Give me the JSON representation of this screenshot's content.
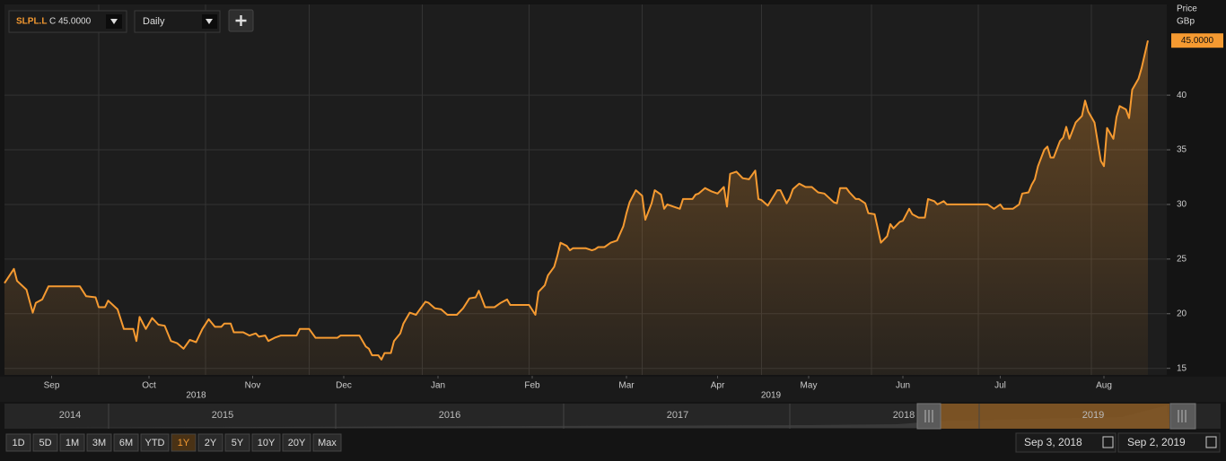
{
  "toolbar": {
    "symbol": "SLPL.L",
    "close_label": "C 45.0000",
    "interval": "Daily"
  },
  "chart_data": {
    "type": "line",
    "y_label": "Price",
    "y_unit": "GBp",
    "price_tag": "45.0000",
    "color": "#f59a31",
    "x": [
      0,
      3,
      4,
      7,
      9,
      10,
      12,
      14,
      24,
      26,
      29,
      30,
      32,
      33,
      36,
      38,
      41,
      42,
      43,
      45,
      47,
      49,
      51,
      53,
      55,
      57,
      59,
      61,
      63,
      65,
      67,
      69,
      70,
      72,
      73,
      76,
      78,
      80,
      81,
      83,
      84,
      86,
      88,
      93,
      94,
      97,
      99,
      106,
      107,
      113,
      115,
      116,
      117,
      119,
      120,
      121,
      123,
      124,
      126,
      127,
      129,
      131,
      132,
      134,
      135,
      137,
      139,
      141,
      144,
      146,
      148,
      150,
      151,
      153,
      156,
      158,
      160,
      161,
      167,
      169,
      170,
      172,
      173,
      175,
      176,
      177,
      179,
      180,
      181,
      185,
      187,
      188,
      189,
      191,
      193,
      195,
      197,
      198,
      199,
      201,
      203,
      204,
      206,
      207,
      209,
      210,
      211,
      213,
      215,
      216,
      219,
      220,
      221,
      223,
      225,
      227,
      229,
      230,
      231,
      233,
      235,
      237,
      239,
      240,
      241,
      243,
      246,
      247,
      249,
      250,
      251,
      253,
      255,
      257,
      259,
      261,
      264,
      265,
      266,
      268,
      269,
      271,
      272,
      274,
      275,
      277,
      278,
      279,
      281,
      282,
      283,
      285,
      286,
      288,
      289,
      291,
      293,
      294,
      296,
      297,
      299,
      300,
      313,
      315,
      317,
      318,
      321,
      323,
      324,
      326,
      327,
      328,
      329,
      331,
      332,
      333,
      334,
      336,
      337,
      338,
      339,
      341,
      343,
      344,
      345,
      347,
      349,
      350,
      351,
      353,
      354,
      355,
      357,
      358,
      359,
      361,
      362,
      364
    ],
    "values": [
      22.8,
      24.1,
      23,
      22.2,
      20.1,
      21,
      21.3,
      22.5,
      22.5,
      21.6,
      21.5,
      20.6,
      20.6,
      21.2,
      20.4,
      18.6,
      18.6,
      17.5,
      19.7,
      18.6,
      19.6,
      19.0,
      18.9,
      17.5,
      17.3,
      16.8,
      17.6,
      17.4,
      18.6,
      19.5,
      18.8,
      18.8,
      19.1,
      19.1,
      18.3,
      18.3,
      18.0,
      18.2,
      17.9,
      18.0,
      17.5,
      17.8,
      18.0,
      18.0,
      18.6,
      18.6,
      17.8,
      17.8,
      18.0,
      18.0,
      17.0,
      16.8,
      16.2,
      16.2,
      15.8,
      16.4,
      16.4,
      17.5,
      18.2,
      19.1,
      20.1,
      19.9,
      20.3,
      21.1,
      21.0,
      20.5,
      20.4,
      19.9,
      19.9,
      20.5,
      21.4,
      21.5,
      22.1,
      20.6,
      20.6,
      21.0,
      21.3,
      20.8,
      20.8,
      19.9,
      22.0,
      22.6,
      23.5,
      24.3,
      25.3,
      26.5,
      26.2,
      25.8,
      26.0,
      26.0,
      25.8,
      25.9,
      26.1,
      26.1,
      26.5,
      26.7,
      28.0,
      29.2,
      30.2,
      31.3,
      30.8,
      28.6,
      30.1,
      31.3,
      30.9,
      29.6,
      30.0,
      29.8,
      29.6,
      30.5,
      30.5,
      30.9,
      31.0,
      31.5,
      31.2,
      31.0,
      31.6,
      29.8,
      32.8,
      33.0,
      32.4,
      32.3,
      33.1,
      30.5,
      30.4,
      29.9,
      31.3,
      31.3,
      30.1,
      30.6,
      31.4,
      31.9,
      31.6,
      31.6,
      31.1,
      31.0,
      30.2,
      30.1,
      31.5,
      31.5,
      31.1,
      30.5,
      30.5,
      30.1,
      29.2,
      29.1,
      27.8,
      26.5,
      27.1,
      28.2,
      27.8,
      28.4,
      28.5,
      29.6,
      29.1,
      28.8,
      28.8,
      30.5,
      30.3,
      30.0,
      30.3,
      30.0,
      30.0,
      29.6,
      30.0,
      29.6,
      29.6,
      30.0,
      31.0,
      31.1,
      31.8,
      32.3,
      33.5,
      35.0,
      35.3,
      34.3,
      34.3,
      35.8,
      36.1,
      37.1,
      36.0,
      37.5,
      38.1,
      39.5,
      38.5,
      37.5,
      34.0,
      33.5,
      37.0,
      36.0,
      38.0,
      39.0,
      38.7,
      37.9,
      40.5,
      41.5,
      42.5,
      45.0
    ],
    "xlim": [
      0,
      370
    ],
    "ylim": [
      14.4,
      48.3
    ],
    "yticks": [
      15,
      20,
      25,
      30,
      35,
      40
    ],
    "xticks": [
      {
        "value": 15,
        "label": "Sep"
      },
      {
        "value": 46,
        "label": "Oct"
      },
      {
        "value": 79,
        "label": "Nov"
      },
      {
        "value": 108,
        "label": "Dec"
      },
      {
        "value": 138,
        "label": "Jan"
      },
      {
        "value": 168,
        "label": "Feb"
      },
      {
        "value": 198,
        "label": "Mar"
      },
      {
        "value": 227,
        "label": "Apr"
      },
      {
        "value": 256,
        "label": "May"
      },
      {
        "value": 286,
        "label": "Jun"
      },
      {
        "value": 317,
        "label": "Jul"
      },
      {
        "value": 350,
        "label": "Aug"
      }
    ],
    "xgrid": [
      30,
      64,
      97,
      133,
      167,
      203,
      241,
      276,
      310,
      346
    ],
    "year_labels": [
      {
        "x": 61,
        "label": "2018"
      },
      {
        "x": 244,
        "label": "2019"
      }
    ],
    "grid": true
  },
  "navigator": {
    "years": [
      "2014",
      "2015",
      "2016",
      "2017",
      "2018",
      "2019"
    ]
  },
  "ranges": {
    "buttons": [
      "1D",
      "5D",
      "1M",
      "3M",
      "6M",
      "YTD",
      "1Y",
      "2Y",
      "5Y",
      "10Y",
      "20Y",
      "Max"
    ],
    "selected": "1Y"
  },
  "dates": {
    "from": "Sep 3, 2018",
    "to": "Sep 2, 2019"
  }
}
